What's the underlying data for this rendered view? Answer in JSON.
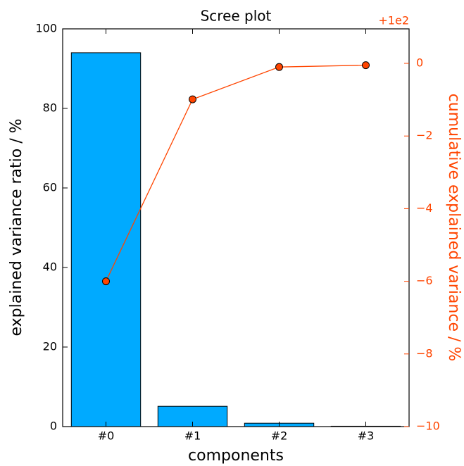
{
  "chart_data": {
    "type": "bar",
    "title": "Scree plot",
    "x_label": "components",
    "y_label": "explained variance ratio / %",
    "y2_label": "cumulative explained variance / %",
    "y2_offset_label": "+1e2",
    "categories": [
      "#0",
      "#1",
      "#2",
      "#3"
    ],
    "series": [
      {
        "type": "bar",
        "color": "#00aaff",
        "values": [
          94.0,
          5.1,
          0.85,
          0.1
        ]
      },
      {
        "type": "line",
        "axis": "y2",
        "color": "#ff4500",
        "values": [
          -6.0,
          -0.99,
          -0.1,
          -0.05
        ]
      }
    ],
    "ylim": [
      0,
      100
    ],
    "yticks": [
      0,
      20,
      40,
      60,
      80,
      100
    ],
    "y2lim": [
      -10,
      0.95
    ],
    "y2ticks": [
      {
        "value": -10,
        "label": "−10"
      },
      {
        "value": -8,
        "label": "−8"
      },
      {
        "value": -6,
        "label": "−6"
      },
      {
        "value": -4,
        "label": "−4"
      },
      {
        "value": -2,
        "label": "−2"
      },
      0
    ]
  }
}
